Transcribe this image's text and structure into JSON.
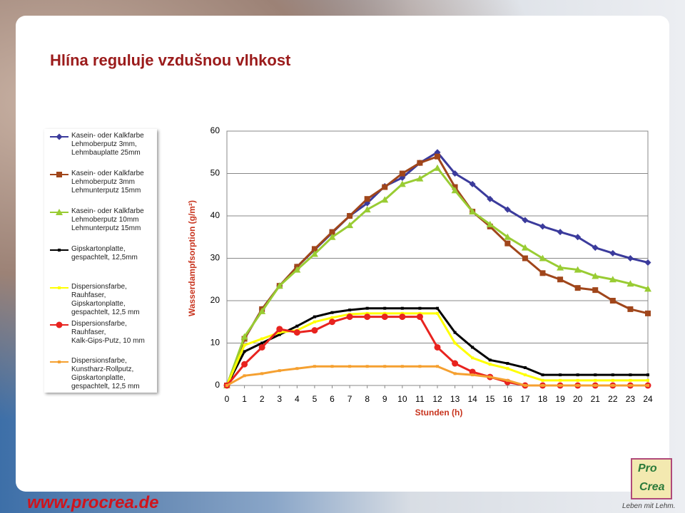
{
  "chart_data": {
    "type": "line",
    "title": "Hlína reguluje vzdušnou vlhkost",
    "x_label": "Stunden (h)",
    "y_label": "Wasserdampfsorption (g/m²)",
    "x": [
      0,
      1,
      2,
      3,
      4,
      5,
      6,
      7,
      8,
      9,
      10,
      11,
      12,
      13,
      14,
      15,
      16,
      17,
      18,
      19,
      20,
      21,
      22,
      23,
      24
    ],
    "xlim": [
      0,
      24
    ],
    "xticks": [
      0,
      1,
      2,
      3,
      4,
      5,
      6,
      7,
      8,
      9,
      10,
      11,
      12,
      13,
      14,
      15,
      16,
      17,
      18,
      19,
      20,
      21,
      22,
      23,
      24
    ],
    "ylim": [
      0,
      60
    ],
    "yticks": [
      0,
      10,
      20,
      30,
      40,
      50,
      60
    ],
    "grid": true,
    "legend": "left",
    "series": [
      {
        "name": "Kasein- oder Kalkfarbe\nLehmoberputz 3mm,\nLehmbauplatte 25mm",
        "color": "#3b3b9c",
        "marker": "diamond",
        "values": [
          0,
          11,
          18,
          23.5,
          28,
          32,
          36,
          40,
          43,
          47,
          49,
          52.5,
          55,
          50,
          47.5,
          44,
          41.5,
          39,
          37.5,
          36.2,
          35,
          32.5,
          31.2,
          30,
          29
        ]
      },
      {
        "name": "Kasein- oder Kalkfarbe\nLehmoberputz 3mm\nLehmunterputz 15mm",
        "color": "#a0461b",
        "marker": "square",
        "values": [
          0,
          11,
          18,
          23.5,
          28,
          32.2,
          36.2,
          40,
          44,
          46.8,
          50,
          52.5,
          54,
          46.8,
          41,
          37.5,
          33.5,
          30,
          26.5,
          25,
          23,
          22.5,
          20,
          18,
          17
        ]
      },
      {
        "name": "Kasein- oder Kalkfarbe\nLehmoberputz 10mm\nLehmunterputz 15mm",
        "color": "#99cc33",
        "marker": "triangle",
        "values": [
          0,
          11.5,
          17.5,
          23.5,
          27.3,
          31,
          35,
          37.8,
          41.5,
          43.8,
          47.5,
          48.8,
          51.3,
          46,
          41,
          38,
          35,
          32.5,
          30,
          27.8,
          27.3,
          25.8,
          25,
          24,
          22.8
        ]
      },
      {
        "name": "Gipskartonplatte,\ngespachtelt, 12,5mm",
        "color": "#000000",
        "marker": "small",
        "values": [
          0,
          8,
          10,
          12,
          14,
          16.2,
          17.2,
          17.8,
          18.2,
          18.2,
          18.2,
          18.2,
          18.2,
          12.5,
          9,
          6,
          5.2,
          4.2,
          2.5,
          2.5,
          2.5,
          2.5,
          2.5,
          2.5,
          2.5
        ]
      },
      {
        "name": "Dispersionsfarbe,\nRauhfaser,\nGipskartonplatte,\ngespachtelt, 12,5 mm",
        "color": "#ffff00",
        "marker": "small",
        "values": [
          0,
          9.5,
          11,
          12.5,
          13,
          15,
          16,
          16.8,
          17,
          17,
          17,
          17,
          17,
          10,
          6.5,
          5,
          4,
          2.5,
          1.2,
          1.2,
          1.2,
          1.2,
          1.2,
          1.2,
          1.2
        ]
      },
      {
        "name": "Dispersionsfarbe,\nRauhfaser,\nKalk-Gips-Putz, 10 mm",
        "color": "#e8231f",
        "marker": "circle",
        "values": [
          0,
          5,
          9,
          13.3,
          12.5,
          13,
          15,
          16.2,
          16.2,
          16.2,
          16.2,
          16.2,
          9,
          5.2,
          3.2,
          2,
          0.8,
          0,
          0,
          0,
          0,
          0,
          0,
          0,
          0
        ]
      },
      {
        "name": "Dispersionsfarbe,\nKunstharz-Rollputz,\nGipskartonplatte,\ngespachtelt, 12,5 mm",
        "color": "#f5a030",
        "marker": "small",
        "values": [
          0,
          2.3,
          2.8,
          3.5,
          4,
          4.5,
          4.5,
          4.5,
          4.5,
          4.5,
          4.5,
          4.5,
          4.5,
          2.8,
          2.5,
          2,
          1.2,
          0,
          0,
          0,
          0,
          0,
          0,
          0,
          0
        ]
      }
    ]
  },
  "footer": {
    "url": "www.procrea.de",
    "logo_top": "Pro",
    "logo_bottom": "Crea",
    "slogan": "Leben mit Lehm."
  }
}
